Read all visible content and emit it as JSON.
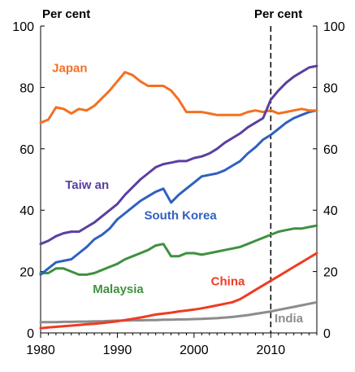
{
  "chart_data": {
    "type": "line",
    "unit_left": "Per cent",
    "unit_right": "Per cent",
    "xlim": [
      1980,
      2016
    ],
    "ylim": [
      0,
      100
    ],
    "x_ticks": [
      1980,
      1990,
      2000,
      2010
    ],
    "y_ticks": [
      0,
      20,
      40,
      60,
      80,
      100
    ],
    "grid": false,
    "reference_line": {
      "x": 2010,
      "style": "dashed"
    },
    "series": [
      {
        "name": "Japan",
        "color": "#f37021",
        "x": [
          1980,
          1981,
          1982,
          1983,
          1984,
          1985,
          1986,
          1987,
          1988,
          1989,
          1990,
          1991,
          1992,
          1993,
          1994,
          1995,
          1996,
          1997,
          1998,
          1999,
          2000,
          2001,
          2002,
          2003,
          2004,
          2005,
          2006,
          2007,
          2008,
          2009,
          2010,
          2011,
          2012,
          2013,
          2014,
          2015,
          2016
        ],
        "values": [
          68.5,
          69.5,
          73.5,
          73,
          71.5,
          73,
          72.5,
          74,
          76.5,
          79,
          82,
          85,
          84,
          82,
          80.5,
          80.5,
          80.5,
          79,
          76,
          72,
          72,
          72,
          71.5,
          71,
          71,
          71,
          71,
          72,
          72.5,
          72,
          72.5,
          71.5,
          72,
          72.5,
          73,
          72.5,
          72.5
        ]
      },
      {
        "name": "Taiw an",
        "color": "#5b3fa0",
        "x": [
          1980,
          1981,
          1982,
          1983,
          1984,
          1985,
          1986,
          1987,
          1988,
          1989,
          1990,
          1991,
          1992,
          1993,
          1994,
          1995,
          1996,
          1997,
          1998,
          1999,
          2000,
          2001,
          2002,
          2003,
          2004,
          2005,
          2006,
          2007,
          2008,
          2009,
          2010,
          2011,
          2012,
          2013,
          2014,
          2015,
          2016
        ],
        "values": [
          29,
          30,
          31.5,
          32.5,
          33,
          33,
          34.5,
          36,
          38,
          40,
          42,
          45,
          47.5,
          50,
          52,
          54,
          55,
          55.5,
          56,
          56,
          57,
          57.5,
          58.5,
          60,
          62,
          63.5,
          65,
          67,
          68.5,
          70,
          76,
          79,
          81.5,
          83.5,
          85,
          86.5,
          87
        ]
      },
      {
        "name": "South Korea",
        "color": "#3060c0",
        "x": [
          1980,
          1981,
          1982,
          1983,
          1984,
          1985,
          1986,
          1987,
          1988,
          1989,
          1990,
          1991,
          1992,
          1993,
          1994,
          1995,
          1996,
          1997,
          1998,
          1999,
          2000,
          2001,
          2002,
          2003,
          2004,
          2005,
          2006,
          2007,
          2008,
          2009,
          2010,
          2011,
          2012,
          2013,
          2014,
          2015,
          2016
        ],
        "values": [
          19,
          21,
          23,
          23.5,
          24,
          26,
          28,
          30.5,
          32,
          34,
          37,
          39,
          41,
          43,
          44.5,
          46,
          47,
          42.5,
          45,
          47,
          49,
          51,
          51.5,
          52,
          53,
          54.5,
          56,
          58.5,
          60.5,
          63,
          64.5,
          66.5,
          68.5,
          70,
          71,
          72,
          72.5
        ]
      },
      {
        "name": "Malaysia",
        "color": "#3f913f",
        "x": [
          1980,
          1981,
          1982,
          1983,
          1984,
          1985,
          1986,
          1987,
          1988,
          1989,
          1990,
          1991,
          1992,
          1993,
          1994,
          1995,
          1996,
          1997,
          1998,
          1999,
          2000,
          2001,
          2002,
          2003,
          2004,
          2005,
          2006,
          2007,
          2008,
          2009,
          2010,
          2011,
          2012,
          2013,
          2014,
          2015,
          2016
        ],
        "values": [
          19.5,
          19.5,
          21,
          21,
          20,
          19,
          19,
          19.5,
          20.5,
          21.5,
          22.5,
          24,
          25,
          26,
          27,
          28.5,
          29,
          25,
          25,
          26,
          26,
          25.5,
          26,
          26.5,
          27,
          27.5,
          28,
          29,
          30,
          31,
          32,
          33,
          33.5,
          34,
          34,
          34.5,
          35
        ]
      },
      {
        "name": "China",
        "color": "#ee3b22",
        "x": [
          1980,
          1981,
          1982,
          1983,
          1984,
          1985,
          1986,
          1987,
          1988,
          1989,
          1990,
          1991,
          1992,
          1993,
          1994,
          1995,
          1996,
          1997,
          1998,
          1999,
          2000,
          2001,
          2002,
          2003,
          2004,
          2005,
          2006,
          2007,
          2008,
          2009,
          2010,
          2011,
          2012,
          2013,
          2014,
          2015,
          2016
        ],
        "values": [
          1.5,
          1.8,
          2,
          2.2,
          2.4,
          2.6,
          2.8,
          3,
          3.2,
          3.5,
          3.8,
          4.2,
          4.6,
          5,
          5.5,
          6,
          6.3,
          6.6,
          7,
          7.3,
          7.6,
          8,
          8.5,
          9,
          9.5,
          10,
          11,
          12.5,
          14,
          15.5,
          17,
          18.5,
          20,
          21.5,
          23,
          24.5,
          26
        ]
      },
      {
        "name": "India",
        "color": "#8c8c8c",
        "x": [
          1980,
          1981,
          1982,
          1983,
          1984,
          1985,
          1986,
          1987,
          1988,
          1989,
          1990,
          1991,
          1992,
          1993,
          1994,
          1995,
          1996,
          1997,
          1998,
          1999,
          2000,
          2001,
          2002,
          2003,
          2004,
          2005,
          2006,
          2007,
          2008,
          2009,
          2010,
          2011,
          2012,
          2013,
          2014,
          2015,
          2016
        ],
        "values": [
          3.5,
          3.5,
          3.5,
          3.6,
          3.6,
          3.7,
          3.7,
          3.8,
          3.8,
          3.9,
          4,
          4,
          4.1,
          4.1,
          4.2,
          4.2,
          4.3,
          4.3,
          4.4,
          4.4,
          4.5,
          4.6,
          4.7,
          4.8,
          5,
          5.2,
          5.5,
          5.8,
          6.2,
          6.6,
          7,
          7.5,
          8,
          8.5,
          9,
          9.5,
          10
        ]
      }
    ]
  }
}
